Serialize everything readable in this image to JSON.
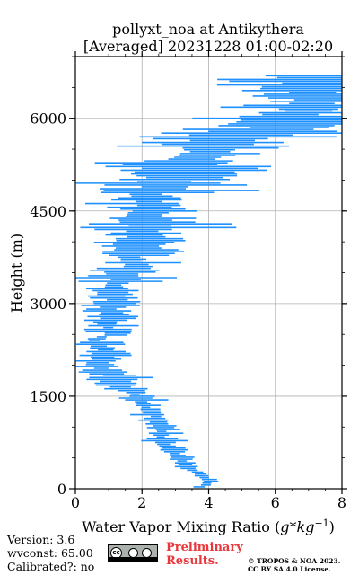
{
  "chart_data": {
    "type": "line",
    "title_line1": "pollyxt_noa at Antikythera",
    "title_line2": "[Averaged] 20231228 01:00-02:20",
    "xlabel": "Water Vapor Mixing Ratio (g*kg⁻¹)",
    "ylabel": "Height (m)",
    "xlim": [
      0,
      8
    ],
    "ylim": [
      0,
      7000
    ],
    "xticks": [
      "0",
      "2",
      "4",
      "6",
      "8"
    ],
    "yticks": [
      "0",
      "1500",
      "3000",
      "4500",
      "6000"
    ],
    "grid": true,
    "series_color": "#1e90ff",
    "profile": [
      [
        0,
        3.6
      ],
      [
        60,
        3.9
      ],
      [
        120,
        4.0
      ],
      [
        180,
        3.9
      ],
      [
        250,
        3.7
      ],
      [
        320,
        3.4
      ],
      [
        400,
        3.3
      ],
      [
        480,
        3.2
      ],
      [
        560,
        3.0
      ],
      [
        640,
        2.9
      ],
      [
        720,
        2.7
      ],
      [
        800,
        2.6
      ],
      [
        880,
        2.5
      ],
      [
        960,
        2.6
      ],
      [
        1050,
        2.5
      ],
      [
        1150,
        2.4
      ],
      [
        1250,
        2.2
      ],
      [
        1350,
        2.1
      ],
      [
        1450,
        1.9
      ],
      [
        1520,
        1.8
      ],
      [
        1600,
        1.6
      ],
      [
        1680,
        1.2
      ],
      [
        1750,
        1.1
      ],
      [
        1800,
        1.2
      ],
      [
        1900,
        0.8
      ],
      [
        2000,
        0.7
      ],
      [
        2100,
        0.8
      ],
      [
        2200,
        1.0
      ],
      [
        2300,
        0.7
      ],
      [
        2400,
        0.6
      ],
      [
        2440,
        0.6
      ],
      [
        2500,
        1.2
      ],
      [
        2600,
        1.0
      ],
      [
        2700,
        0.9
      ],
      [
        2800,
        1.2
      ],
      [
        2900,
        0.8
      ],
      [
        3000,
        1.3
      ],
      [
        3100,
        1.1
      ],
      [
        3200,
        1.0
      ],
      [
        3300,
        1.2
      ],
      [
        3400,
        1.3
      ],
      [
        3500,
        1.6
      ],
      [
        3600,
        1.8
      ],
      [
        3700,
        1.7
      ],
      [
        3800,
        1.6
      ],
      [
        3900,
        1.9
      ],
      [
        4000,
        2.0
      ],
      [
        4100,
        1.9
      ],
      [
        4200,
        2.1
      ],
      [
        4300,
        2.2
      ],
      [
        4400,
        2.0
      ],
      [
        4500,
        2.3
      ],
      [
        4600,
        2.2
      ],
      [
        4700,
        2.1
      ],
      [
        4800,
        2.3
      ],
      [
        4900,
        2.6
      ],
      [
        5000,
        2.8
      ],
      [
        5100,
        3.0
      ],
      [
        5200,
        3.2
      ],
      [
        5300,
        3.3
      ],
      [
        5400,
        3.8
      ],
      [
        5500,
        4.1
      ],
      [
        5600,
        4.3
      ],
      [
        5700,
        4.4
      ],
      [
        5800,
        6.0
      ],
      [
        5900,
        6.3
      ],
      [
        6000,
        6.5
      ],
      [
        6200,
        7.0
      ],
      [
        6400,
        7.2
      ],
      [
        6600,
        7.4
      ],
      [
        6700,
        7.5
      ]
    ]
  },
  "footer": {
    "version": "Version: 3.6",
    "wvconst": "wvconst:  65.00",
    "calibrated": "Calibrated?: no",
    "preliminary_line1": "Preliminary",
    "preliminary_line2": "Results.",
    "copyright_line1": "© TROPOS & NOA 2023.",
    "copyright_line2": "CC BY SA 4.0 License.",
    "license_badge": "cc by sa"
  }
}
